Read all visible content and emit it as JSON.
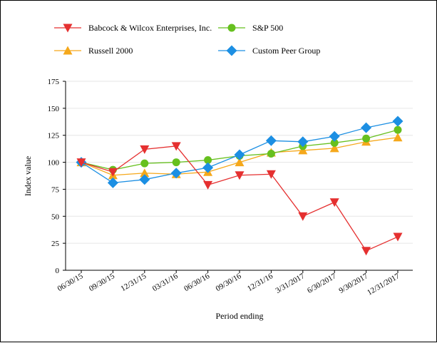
{
  "chart_data": {
    "type": "line",
    "title": "",
    "xlabel": "Period ending",
    "ylabel": "Index value",
    "ylim": [
      0,
      175
    ],
    "yticks": [
      0,
      25,
      50,
      75,
      100,
      125,
      150,
      175
    ],
    "grid": "horizontal",
    "legend_position": "top",
    "categories": [
      "06/30/15",
      "09/30/15",
      "12/31/15",
      "03/31/16",
      "06/30/16",
      "09/30/16",
      "12/31/16",
      "3/31/2017",
      "6/30/2017",
      "9/30/2017",
      "12/31/2017"
    ],
    "series": [
      {
        "name": "Babcock & Wilcox Enterprises, Inc.",
        "color": "#e53030",
        "marker": "triangle-down",
        "values": [
          100,
          91,
          112,
          115,
          79,
          88,
          89,
          50,
          63,
          18,
          31
        ]
      },
      {
        "name": "S&P 500",
        "color": "#66c01e",
        "marker": "circle",
        "values": [
          100,
          93,
          99,
          100,
          102,
          106,
          108,
          115,
          118,
          122,
          130
        ]
      },
      {
        "name": "Russell 2000",
        "color": "#f5a81b",
        "marker": "triangle-up",
        "values": [
          100,
          88,
          90,
          89,
          91,
          100,
          109,
          111,
          113,
          119,
          123
        ]
      },
      {
        "name": "Custom Peer Group",
        "color": "#1c8fe3",
        "marker": "diamond",
        "values": [
          100,
          81,
          84,
          90,
          95,
          107,
          120,
          119,
          124,
          132,
          138
        ]
      }
    ]
  },
  "colors": {
    "axis": "#000000",
    "grid": "#e6e6e6"
  }
}
